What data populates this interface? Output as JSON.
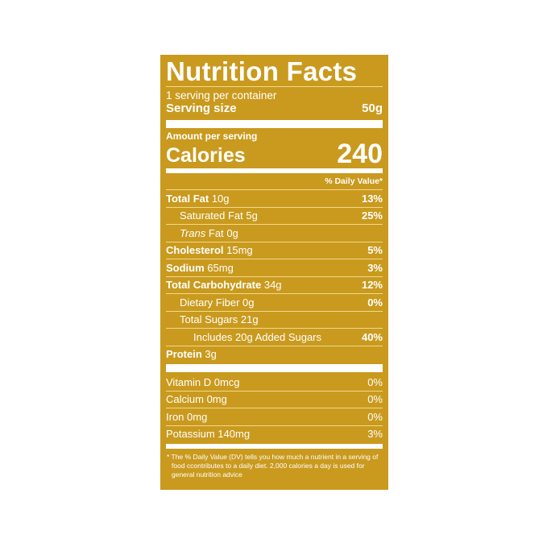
{
  "title": "Nutrition Facts",
  "servings_per_container": "1 serving per container",
  "serving_size": {
    "label": "Serving size",
    "value": "50g"
  },
  "amount_per_serving": "Amount per serving",
  "calories": {
    "label": "Calories",
    "value": "240"
  },
  "daily_value_header": "% Daily Value*",
  "nutrients": [
    {
      "name": "Total Fat",
      "amount": "10g",
      "dv": "13%"
    },
    {
      "name": "Saturated Fat",
      "amount": "5g",
      "dv": "25%"
    },
    {
      "name": "Trans",
      "name_suffix": "Fat",
      "amount": "0g",
      "dv": ""
    },
    {
      "name": "Cholesterol",
      "amount": "15mg",
      "dv": "5%"
    },
    {
      "name": "Sodium",
      "amount": "65mg",
      "dv": "3%"
    },
    {
      "name": "Total Carbohydrate",
      "amount": "34g",
      "dv": "12%"
    },
    {
      "name": "Dietary Fiber",
      "amount": "0g",
      "dv": "0%"
    },
    {
      "name": "Total Sugars",
      "amount": "21g",
      "dv": ""
    },
    {
      "name": "Includes 20g Added Sugars",
      "amount": "",
      "dv": "40%"
    },
    {
      "name": "Protein",
      "amount": "3g",
      "dv": ""
    }
  ],
  "vitamins": [
    {
      "label": "Vitamin D 0mcg",
      "dv": "0%"
    },
    {
      "label": "Calcium 0mg",
      "dv": "0%"
    },
    {
      "label": "Iron 0mg",
      "dv": "0%"
    },
    {
      "label": "Potassium 140mg",
      "dv": "3%"
    }
  ],
  "footnote": "* The % Daily Value (DV) tells you how much a nutrient in a serving of food ccontributes to a daily diet. 2,000 calories a day is used for general nutrition advice",
  "colors": {
    "label_background": "#c99a1e",
    "text": "#ffffff"
  }
}
